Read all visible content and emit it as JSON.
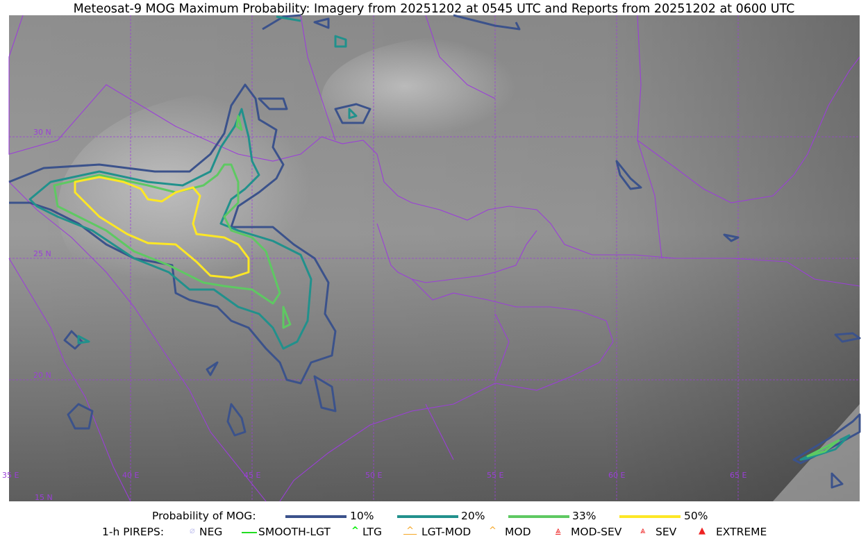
{
  "title": "Meteosat-9 MOG Maximum Probability: Imagery from 20251202 at 0545 UTC and Reports from 20251202 at 0600 UTC",
  "map": {
    "lat_labels": [
      "30 N",
      "25 N",
      "20 N",
      "15 N"
    ],
    "lon_labels": [
      "35 E",
      "40 E",
      "45 E",
      "50 E",
      "55 E",
      "60 E",
      "65 E"
    ],
    "gridline_color": "#9b3fd8",
    "boundary_color": "#9b3fd8"
  },
  "legend": {
    "probability": {
      "label": "Probability of MOG:",
      "items": [
        {
          "label": "10%",
          "color": "#3b528b"
        },
        {
          "label": "20%",
          "color": "#21918c"
        },
        {
          "label": "33%",
          "color": "#5ec962"
        },
        {
          "label": "50%",
          "color": "#fde725"
        }
      ]
    },
    "pireps": {
      "label": "1-h PIREPS:",
      "items": [
        {
          "label": "NEG",
          "color": "#c8c8f0",
          "icon": "neg-circle-slash-icon"
        },
        {
          "label": "SMOOTH-LGT",
          "color": "#22dd22",
          "icon": "smooth-line-icon"
        },
        {
          "label": "LTG",
          "color": "#00ee00",
          "icon": "caret-icon"
        },
        {
          "label": "LGT-MOD",
          "color": "#f5a623",
          "icon": "caret-underline-icon"
        },
        {
          "label": "MOD",
          "color": "#f5a623",
          "icon": "caret-icon"
        },
        {
          "label": "MOD-SEV",
          "color": "#ee2222",
          "icon": "double-caret-underline-icon"
        },
        {
          "label": "SEV",
          "color": "#ee2222",
          "icon": "double-caret-icon"
        },
        {
          "label": "EXTREME",
          "color": "#ee2222",
          "icon": "filled-triangle-icon"
        }
      ]
    }
  }
}
